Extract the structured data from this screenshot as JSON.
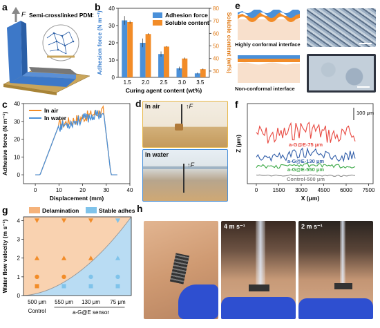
{
  "panel_labels": {
    "a": "a",
    "b": "b",
    "c": "c",
    "d": "d",
    "e": "e",
    "f": "f",
    "g": "g",
    "h": "h"
  },
  "panel_a": {
    "force_label": "F",
    "material_label": "Semi-crosslinked PDMS"
  },
  "chart_data": [
    {
      "panel": "b",
      "type": "bar",
      "categories": [
        "1.5",
        "2.0",
        "2.5",
        "3.0",
        "3.5"
      ],
      "series": [
        {
          "name": "Adhesion force",
          "values": [
            33,
            20,
            13.5,
            5.2,
            2.3
          ],
          "errors": [
            2.5,
            2.5,
            1.5,
            1.0,
            0.5
          ],
          "color": "#4a90d9"
        },
        {
          "name": "Soluble content",
          "values": [
            69,
            59.5,
            49.5,
            40,
            31.5
          ],
          "errors": [
            1.2,
            0.6,
            0.4,
            0.8,
            0.6
          ],
          "color": "#f28c28"
        }
      ],
      "xlabel": "Curing agent content (wt%)",
      "ylabel": "Adhesion force (N m⁻¹)",
      "ylabel2": "Soluble content (wt%)",
      "ylim": [
        0,
        40
      ],
      "ylim2": [
        25,
        80
      ],
      "yticks": [
        "0",
        "10",
        "20",
        "30",
        "40"
      ],
      "y2ticks": [
        "30",
        "40",
        "50",
        "60",
        "70",
        "80"
      ]
    },
    {
      "panel": "c",
      "type": "line",
      "series": [
        {
          "name": "In air",
          "color": "#f28c28"
        },
        {
          "name": "In water",
          "color": "#4a90d9"
        }
      ],
      "xlabel": "Displacement (mm)",
      "ylabel": "Adhesive force (N m⁻¹)",
      "xlim": [
        -5,
        40
      ],
      "ylim": [
        -5,
        40
      ],
      "xticks": [
        "0",
        "10",
        "20",
        "30",
        "40"
      ],
      "yticks": [
        "0",
        "10",
        "20",
        "30",
        "40"
      ]
    },
    {
      "panel": "f",
      "type": "line",
      "series": [
        {
          "name": "a-G@E-75 μm",
          "color": "#e8473f"
        },
        {
          "name": "a-G@E-130 μm",
          "color": "#2f5ca8"
        },
        {
          "name": "a-G@E-550 μm",
          "color": "#3aa845"
        },
        {
          "name": "Control-500 μm",
          "color": "#888888"
        }
      ],
      "xlabel": "X (μm)",
      "ylabel": "Z (μm)",
      "scale_bar": "100 μm",
      "xticks": [
        "0",
        "1500",
        "3000",
        "4500",
        "6000",
        "7500"
      ]
    },
    {
      "panel": "g",
      "type": "scatter",
      "regions": [
        "Delamination",
        "Stable adhesion"
      ],
      "categories": [
        "500 μm",
        "550 μm",
        "130 μm",
        "75 μm"
      ],
      "group_labels": [
        "Control",
        "a-G@E sensor"
      ],
      "ylabel": "Water flow velocity (m s⁻¹)",
      "yticks": [
        "0",
        "1",
        "2",
        "3",
        "4"
      ],
      "ylim": [
        0,
        4.2
      ]
    }
  ],
  "panel_d": {
    "air_label": "In air",
    "water_label": "In water",
    "force_label": "F"
  },
  "panel_e": {
    "conformal_label": "Highly conformal interface",
    "nonconformal_label": "Non-conformal interface"
  },
  "panel_h": {
    "speed1": "4 m s⁻¹",
    "speed2": "2 m s⁻¹"
  }
}
